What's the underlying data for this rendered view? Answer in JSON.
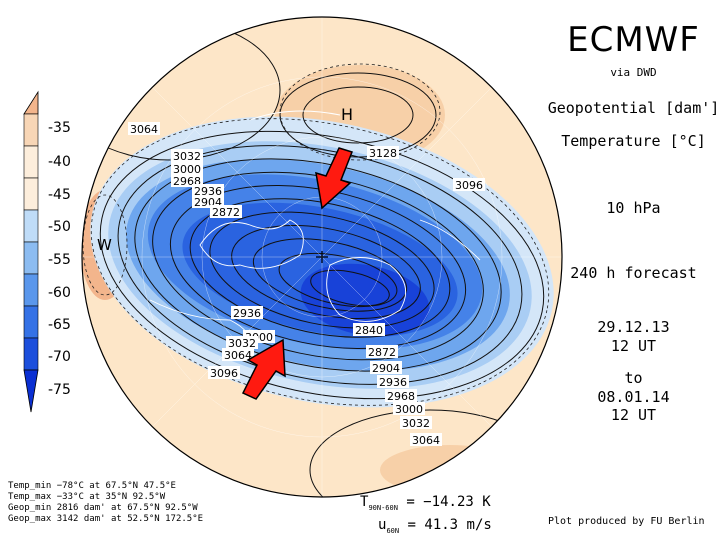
{
  "header": {
    "title": "ECMWF",
    "source": "via DWD",
    "var1": "Geopotential [dam']",
    "var2": "Temperature [°C]",
    "level": "10 hPa",
    "forecast": "240 h forecast",
    "init_date": "29.12.13",
    "init_time": "12 UT",
    "to": "to",
    "valid_date": "08.01.14",
    "valid_time": "12 UT"
  },
  "colorbar": {
    "labels": [
      "-35",
      "-40",
      "-45",
      "-50",
      "-55",
      "-60",
      "-65",
      "-70",
      "-75"
    ],
    "colors": [
      "#f3b58c",
      "#f8d6b6",
      "#fdeedc",
      "#bfdcf8",
      "#8cbcf1",
      "#5a97ec",
      "#3572e6",
      "#1c4fdc",
      "#0a2fd2"
    ]
  },
  "map": {
    "high_label": "H",
    "warm_label": "W",
    "contour_labels": [
      "3064",
      "3032",
      "3000",
      "2968",
      "2936",
      "2904",
      "2872",
      "3128",
      "3096",
      "2936",
      "3000",
      "3032",
      "3064",
      "3096",
      "2840",
      "2872",
      "2904",
      "2936",
      "2968",
      "3000",
      "3032",
      "3064"
    ],
    "arrow_color": "#ff0000"
  },
  "stats": {
    "temp_min": "Temp_min −78°C at 67.5°N 47.5°E",
    "temp_max": "Temp_max −33°C at 35°N 92.5°W",
    "geop_min": "Geop_min 2816 dam' at 67.5°N 92.5°W",
    "geop_max": "Geop_max 3142 dam' at 52.5°N 172.5°E"
  },
  "diagnostics": {
    "t_symbol": "T",
    "t_sub": "90N-60N",
    "t_value": "= −14.23 K",
    "u_symbol": "u",
    "u_sub": "60N",
    "u_value": "= 41.3 m/s"
  },
  "credit": "Plot produced by FU Berlin"
}
